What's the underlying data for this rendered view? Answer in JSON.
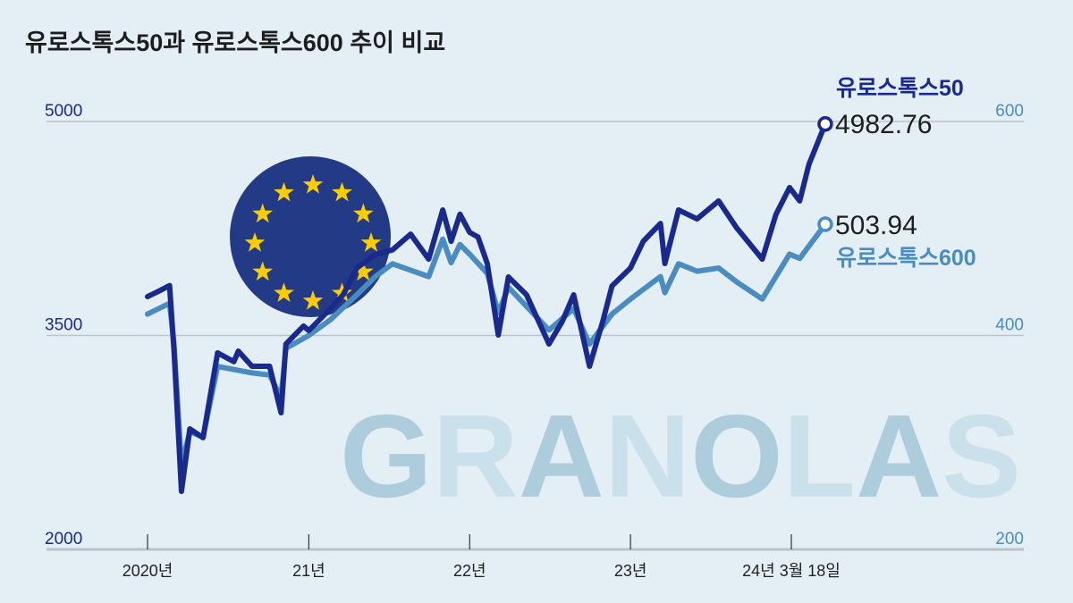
{
  "chart_data": {
    "type": "line",
    "title": "유로스톡스50과 유로스톡스600 추이 비교",
    "watermark": "GRANOLAS",
    "colors": {
      "s50": "#1a2a8c",
      "s600": "#4a8cc0",
      "flag": "#233a86",
      "star": "#ffcc00",
      "grid": "#b9c3c9"
    },
    "x_ticks": [
      {
        "date": "2020-01-01",
        "label": "2020년"
      },
      {
        "date": "2021-01-01",
        "label": "21년"
      },
      {
        "date": "2022-01-01",
        "label": "22년"
      },
      {
        "date": "2023-01-01",
        "label": "23년"
      },
      {
        "date": "2024-01-01",
        "label": "24년 3월 18일"
      }
    ],
    "y_left": {
      "range": [
        2000,
        5000
      ],
      "ticks": [
        "2000",
        "3500",
        "5000"
      ]
    },
    "y_right": {
      "range": [
        200,
        600
      ],
      "ticks": [
        "200",
        "400",
        "600"
      ]
    },
    "grid": "horizontal",
    "series": [
      {
        "name": "유로스톡스50",
        "axis": "left",
        "last_label": "4982.76",
        "points": [
          [
            "2020-01-01",
            3772
          ],
          [
            "2020-01-30",
            3816
          ],
          [
            "2020-02-20",
            3850
          ],
          [
            "2020-03-01",
            3400
          ],
          [
            "2020-03-18",
            2407
          ],
          [
            "2020-04-06",
            2845
          ],
          [
            "2020-05-06",
            2783
          ],
          [
            "2020-06-08",
            3378
          ],
          [
            "2020-07-15",
            3316
          ],
          [
            "2020-07-25",
            3390
          ],
          [
            "2020-08-25",
            3284
          ],
          [
            "2020-10-04",
            3284
          ],
          [
            "2020-10-30",
            2958
          ],
          [
            "2020-11-10",
            3440
          ],
          [
            "2020-12-20",
            3566
          ],
          [
            "2021-01-01",
            3534
          ],
          [
            "2021-02-20",
            3691
          ],
          [
            "2021-03-20",
            3785
          ],
          [
            "2021-04-20",
            3973
          ],
          [
            "2021-06-01",
            4067
          ],
          [
            "2021-07-10",
            4100
          ],
          [
            "2021-08-20",
            4210
          ],
          [
            "2021-09-30",
            4035
          ],
          [
            "2021-11-01",
            4380
          ],
          [
            "2021-11-20",
            4160
          ],
          [
            "2021-12-10",
            4350
          ],
          [
            "2022-01-01",
            4223
          ],
          [
            "2022-01-20",
            4190
          ],
          [
            "2022-02-10",
            4004
          ],
          [
            "2022-03-07",
            3503
          ],
          [
            "2022-03-30",
            3910
          ],
          [
            "2022-05-10",
            3785
          ],
          [
            "2022-06-30",
            3440
          ],
          [
            "2022-07-30",
            3597
          ],
          [
            "2022-08-25",
            3785
          ],
          [
            "2022-09-30",
            3284
          ],
          [
            "2022-10-30",
            3597
          ],
          [
            "2022-11-20",
            3847
          ],
          [
            "2023-01-01",
            3973
          ],
          [
            "2023-01-30",
            4160
          ],
          [
            "2023-03-10",
            4285
          ],
          [
            "2023-03-20",
            4004
          ],
          [
            "2023-04-20",
            4380
          ],
          [
            "2023-06-01",
            4317
          ],
          [
            "2023-07-20",
            4443
          ],
          [
            "2023-08-30",
            4254
          ],
          [
            "2023-10-27",
            4035
          ],
          [
            "2023-11-27",
            4348
          ],
          [
            "2023-12-28",
            4537
          ],
          [
            "2024-01-20",
            4443
          ],
          [
            "2024-02-10",
            4700
          ],
          [
            "2024-03-18",
            4982.76
          ]
        ]
      },
      {
        "name": "유로스톡스600",
        "axis": "right",
        "last_label": "503.94",
        "points": [
          [
            "2020-01-01",
            420
          ],
          [
            "2020-02-20",
            430
          ],
          [
            "2020-03-01",
            392
          ],
          [
            "2020-03-18",
            279
          ],
          [
            "2020-04-06",
            310
          ],
          [
            "2020-05-06",
            305
          ],
          [
            "2020-06-08",
            371
          ],
          [
            "2020-08-25",
            365
          ],
          [
            "2020-10-04",
            363
          ],
          [
            "2020-10-30",
            342
          ],
          [
            "2020-11-10",
            388
          ],
          [
            "2021-01-01",
            400
          ],
          [
            "2021-02-20",
            415
          ],
          [
            "2021-04-20",
            438
          ],
          [
            "2021-06-01",
            455
          ],
          [
            "2021-07-10",
            467
          ],
          [
            "2021-09-30",
            455
          ],
          [
            "2021-11-01",
            490
          ],
          [
            "2021-11-20",
            468
          ],
          [
            "2021-12-10",
            485
          ],
          [
            "2022-01-01",
            476
          ],
          [
            "2022-02-10",
            458
          ],
          [
            "2022-03-07",
            421
          ],
          [
            "2022-03-30",
            445
          ],
          [
            "2022-06-30",
            405
          ],
          [
            "2022-08-25",
            425
          ],
          [
            "2022-09-30",
            392
          ],
          [
            "2022-11-20",
            420
          ],
          [
            "2023-01-01",
            434
          ],
          [
            "2023-03-10",
            455
          ],
          [
            "2023-03-20",
            440
          ],
          [
            "2023-04-20",
            467
          ],
          [
            "2023-06-01",
            460
          ],
          [
            "2023-07-20",
            463
          ],
          [
            "2023-08-30",
            450
          ],
          [
            "2023-10-27",
            434
          ],
          [
            "2023-12-28",
            476
          ],
          [
            "2024-01-20",
            472
          ],
          [
            "2024-03-18",
            503.94
          ]
        ]
      }
    ]
  }
}
